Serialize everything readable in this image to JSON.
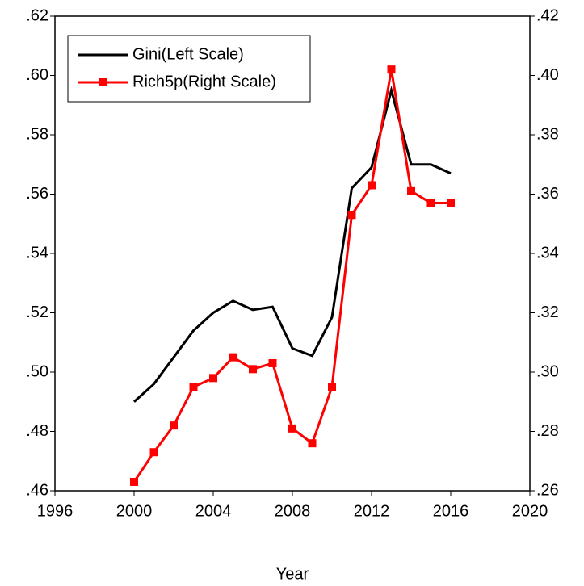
{
  "chart_data": {
    "type": "line",
    "x_label": "Year",
    "x": [
      2000,
      2001,
      2002,
      2003,
      2004,
      2005,
      2006,
      2007,
      2008,
      2009,
      2010,
      2011,
      2012,
      2013,
      2014,
      2015,
      2016
    ],
    "xlim": [
      1996,
      2020
    ],
    "xticks": [
      1996,
      2000,
      2004,
      2008,
      2012,
      2016,
      2020
    ],
    "ylim": [
      0.46,
      0.62
    ],
    "yticks": [
      {
        "value": 0.46,
        "label": ".46"
      },
      {
        "value": 0.48,
        "label": ".48"
      },
      {
        "value": 0.5,
        "label": ".50"
      },
      {
        "value": 0.52,
        "label": ".52"
      },
      {
        "value": 0.54,
        "label": ".54"
      },
      {
        "value": 0.56,
        "label": ".56"
      },
      {
        "value": 0.58,
        "label": ".58"
      },
      {
        "value": 0.6,
        "label": ".60"
      },
      {
        "value": 0.62,
        "label": ".62"
      }
    ],
    "y2lim": [
      0.26,
      0.42
    ],
    "y2ticks": [
      {
        "value": 0.26,
        "label": ".26"
      },
      {
        "value": 0.28,
        "label": ".28"
      },
      {
        "value": 0.3,
        "label": ".30"
      },
      {
        "value": 0.32,
        "label": ".32"
      },
      {
        "value": 0.34,
        "label": ".34"
      },
      {
        "value": 0.36,
        "label": ".36"
      },
      {
        "value": 0.38,
        "label": ".38"
      },
      {
        "value": 0.4,
        "label": ".40"
      },
      {
        "value": 0.42,
        "label": ".42"
      }
    ],
    "legend": "top-left",
    "series": [
      {
        "name": "Gini(Left Scale)",
        "color": "#000000",
        "values": [
          0.49,
          0.496,
          0.505,
          0.514,
          0.52,
          0.524,
          0.521,
          0.522,
          0.508,
          0.5055,
          0.5185,
          0.562,
          0.569,
          0.595,
          0.57,
          0.57,
          0.567
        ]
      },
      {
        "name": "Rich5p(Right Scale)",
        "color": "#ff0000",
        "axis": "y2",
        "marker": "square",
        "values": [
          0.263,
          0.273,
          0.282,
          0.295,
          0.298,
          0.305,
          0.301,
          0.303,
          0.281,
          0.276,
          0.295,
          0.353,
          0.363,
          0.402,
          0.361,
          0.357,
          0.357
        ]
      }
    ]
  }
}
